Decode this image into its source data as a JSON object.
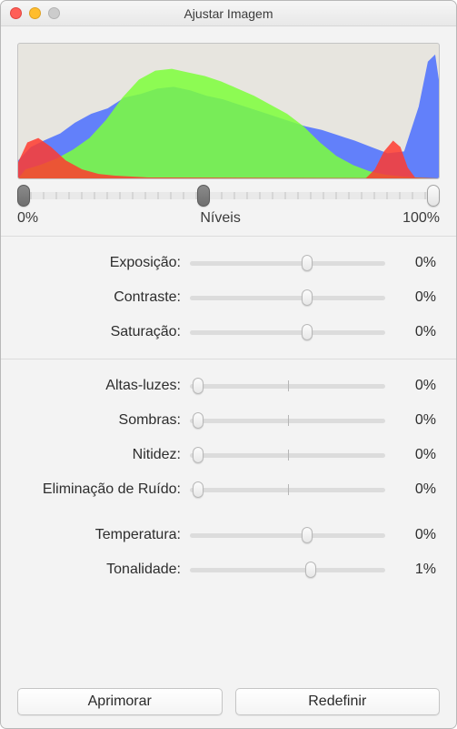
{
  "window": {
    "title": "Ajustar Imagem"
  },
  "histogram": {
    "background_color": "#e7e5df",
    "colors": {
      "red": "#ff3b2f",
      "green": "#7cff3b",
      "blue": "#4a6fff"
    },
    "levels": {
      "min_pct": 0,
      "mid_pct": 44,
      "max_pct": 100,
      "min_label": "0%",
      "mid_label": "Níveis",
      "max_label": "100%"
    }
  },
  "sliders": {
    "group1": [
      {
        "key": "exposicao",
        "label": "Exposição:",
        "value_text": "0%",
        "thumb_pct": 60
      },
      {
        "key": "contraste",
        "label": "Contraste:",
        "value_text": "0%",
        "thumb_pct": 60
      },
      {
        "key": "saturacao",
        "label": "Saturação:",
        "value_text": "0%",
        "thumb_pct": 60
      }
    ],
    "group2": [
      {
        "key": "altas-luzes",
        "label": "Altas-luzes:",
        "value_text": "0%",
        "thumb_pct": 4
      },
      {
        "key": "sombras",
        "label": "Sombras:",
        "value_text": "0%",
        "thumb_pct": 4
      },
      {
        "key": "nitidez",
        "label": "Nitidez:",
        "value_text": "0%",
        "thumb_pct": 4
      },
      {
        "key": "ruido",
        "label": "Eliminação de Ruído:",
        "value_text": "0%",
        "thumb_pct": 4
      }
    ],
    "group3": [
      {
        "key": "temperatura",
        "label": "Temperatura:",
        "value_text": "0%",
        "thumb_pct": 60
      },
      {
        "key": "tonalidade",
        "label": "Tonalidade:",
        "value_text": "1%",
        "thumb_pct": 62
      }
    ]
  },
  "buttons": {
    "enhance": "Aprimorar",
    "reset": "Redefinir"
  }
}
